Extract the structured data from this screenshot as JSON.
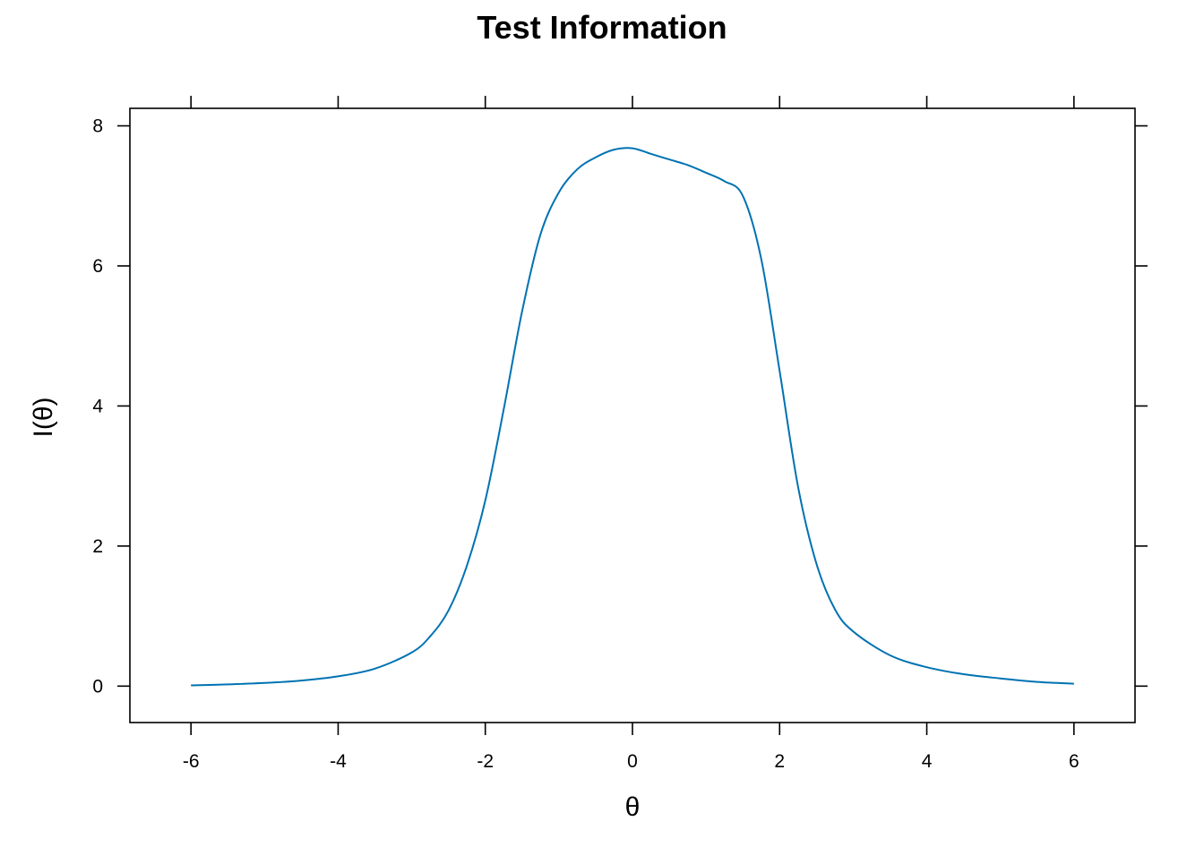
{
  "chart_data": {
    "type": "line",
    "title": "Test Information",
    "xlabel": "θ",
    "ylabel": "I(θ)",
    "xlim": [
      -6.83,
      6.83
    ],
    "ylim": [
      -0.52,
      8.25
    ],
    "x_ticks": [
      -6,
      -4,
      -2,
      0,
      2,
      4,
      6
    ],
    "x_tick_labels": [
      "-6",
      "-4",
      "-2",
      "0",
      "2",
      "4",
      "6"
    ],
    "y_ticks": [
      0,
      2,
      4,
      6,
      8
    ],
    "y_tick_labels": [
      "0",
      "2",
      "4",
      "6",
      "8"
    ],
    "grid": false,
    "line_color": "#0072b2",
    "series": [
      {
        "x": [
          -6.0,
          -5.5,
          -5.0,
          -4.5,
          -4.0,
          -3.5,
          -3.0,
          -2.75,
          -2.5,
          -2.25,
          -2.0,
          -1.75,
          -1.5,
          -1.25,
          -1.0,
          -0.75,
          -0.5,
          -0.25,
          0.0,
          0.25,
          0.5,
          0.75,
          1.0,
          1.25,
          1.5,
          1.75,
          2.0,
          2.25,
          2.5,
          2.75,
          3.0,
          3.5,
          4.0,
          4.5,
          5.0,
          5.5,
          6.0
        ],
        "y": [
          0.01,
          0.025,
          0.045,
          0.08,
          0.14,
          0.25,
          0.48,
          0.71,
          1.08,
          1.72,
          2.65,
          3.95,
          5.35,
          6.45,
          7.05,
          7.38,
          7.55,
          7.66,
          7.68,
          7.6,
          7.52,
          7.44,
          7.33,
          7.21,
          7.0,
          6.1,
          4.5,
          2.85,
          1.75,
          1.1,
          0.78,
          0.44,
          0.27,
          0.17,
          0.11,
          0.06,
          0.035
        ]
      }
    ]
  }
}
